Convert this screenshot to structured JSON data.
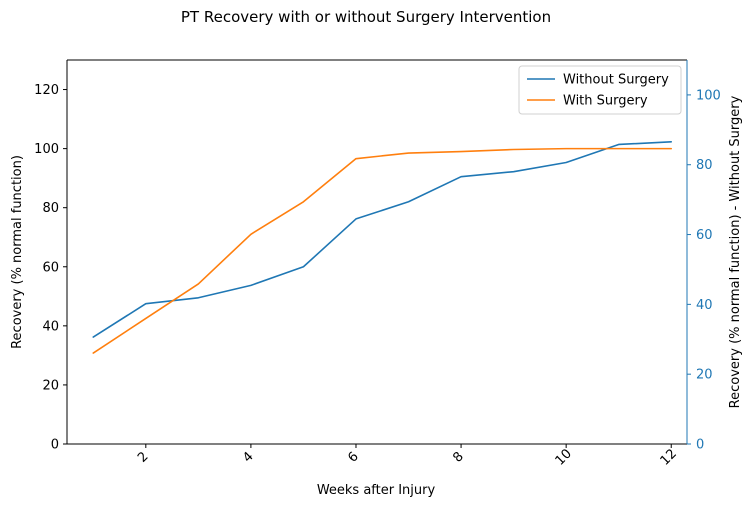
{
  "chart_data": {
    "type": "line",
    "title": "PT Recovery with or without Surgery Intervention",
    "xlabel": "Weeks after Injury",
    "ylabel": "Recovery (% normal function)",
    "y2label": "Recovery (% normal function) - Without Surgery",
    "xlim": [
      0.5,
      12.3
    ],
    "ylim": [
      0,
      130
    ],
    "y2lim": [
      0,
      110
    ],
    "x_ticks": [
      2,
      4,
      6,
      8,
      10,
      12
    ],
    "y_ticks": [
      0,
      20,
      40,
      60,
      80,
      100,
      120
    ],
    "y2_ticks": [
      0,
      20,
      40,
      60,
      80,
      100
    ],
    "x_tick_rotation": 45,
    "legend_position": "top-right",
    "axis_color_right": "#1f77b4",
    "grid": false,
    "x": [
      1,
      2,
      3,
      4,
      5,
      6,
      7,
      8,
      9,
      10,
      11,
      12
    ],
    "series": [
      {
        "name": "Without Surgery",
        "color": "#1f77b4",
        "axis": "left",
        "values": [
          36.2,
          47.5,
          49.5,
          53.7,
          60.0,
          76.2,
          82.0,
          90.5,
          92.2,
          95.3,
          101.4,
          102.3
        ]
      },
      {
        "name": "With Surgery",
        "color": "#ff7f0e",
        "axis": "left",
        "values": [
          30.8,
          42.5,
          54.2,
          71.0,
          82.0,
          96.6,
          98.5,
          99.0,
          99.7,
          100.0,
          100.0,
          100.0
        ]
      }
    ]
  }
}
